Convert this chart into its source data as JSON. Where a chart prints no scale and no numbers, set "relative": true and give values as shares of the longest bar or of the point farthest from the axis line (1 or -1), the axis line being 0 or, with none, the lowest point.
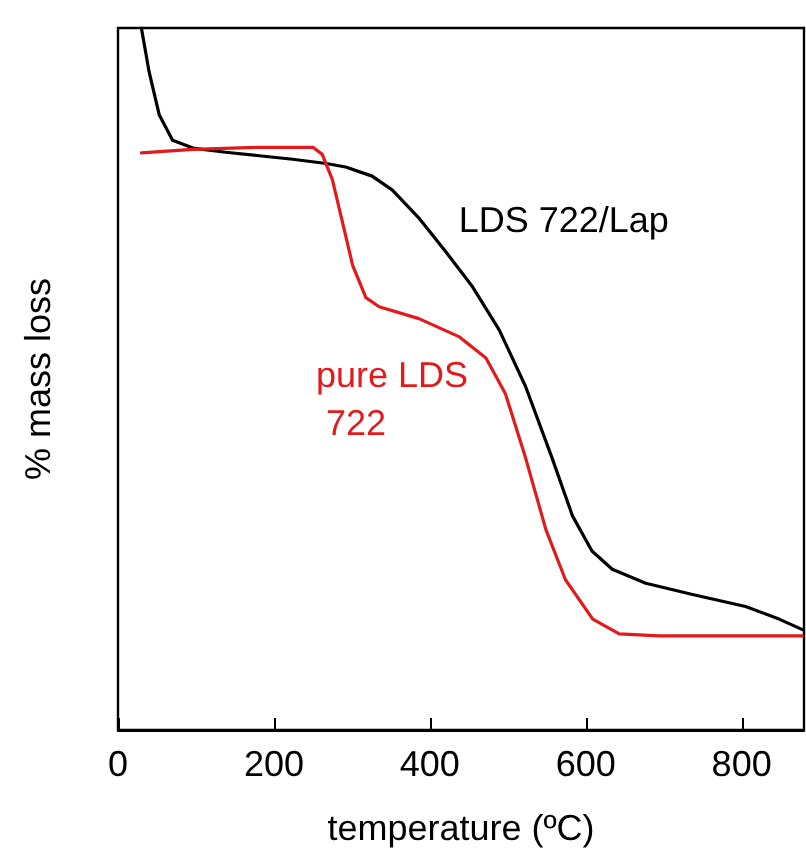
{
  "chart_data": {
    "type": "line",
    "relative": true,
    "xlabel": "temperature (ºC)",
    "ylabel": "% mass loss",
    "xlim": [
      0,
      880
    ],
    "xticks": [
      0,
      200,
      400,
      600,
      800
    ],
    "grid": false,
    "legend": false,
    "marker": "none",
    "line_style": "solid",
    "series": [
      {
        "name": "LDS 722/Lap",
        "color": "#000000",
        "x": [
          30,
          40,
          53,
          70,
          96,
          138,
          181,
          224,
          267,
          292,
          326,
          352,
          387,
          420,
          455,
          489,
          523,
          557,
          583,
          608,
          634,
          677,
          737,
          805,
          848,
          878
        ],
        "values": [
          1.0,
          0.937,
          0.876,
          0.84,
          0.829,
          0.823,
          0.818,
          0.813,
          0.807,
          0.802,
          0.789,
          0.769,
          0.728,
          0.682,
          0.631,
          0.57,
          0.489,
          0.387,
          0.305,
          0.255,
          0.229,
          0.209,
          0.193,
          0.176,
          0.158,
          0.143
        ]
      },
      {
        "name": "pure LDS 722",
        "color": "#e31a1c",
        "x": [
          30,
          96,
          181,
          250,
          262,
          275,
          288,
          301,
          318,
          335,
          386,
          438,
          472,
          497,
          523,
          549,
          574,
          609,
          643,
          694,
          779,
          878
        ],
        "values": [
          0.822,
          0.827,
          0.83,
          0.83,
          0.82,
          0.784,
          0.723,
          0.662,
          0.616,
          0.603,
          0.586,
          0.56,
          0.53,
          0.479,
          0.387,
          0.285,
          0.214,
          0.158,
          0.137,
          0.134,
          0.134,
          0.134
        ]
      }
    ]
  }
}
